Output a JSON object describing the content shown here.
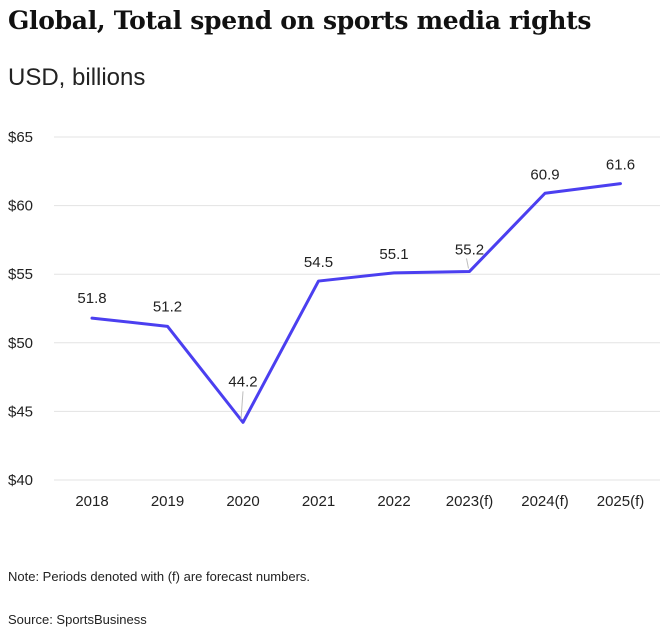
{
  "chart_data": {
    "type": "line",
    "title": "Global, Total spend on sports media rights",
    "subtitle": "USD, billions",
    "categories": [
      "2018",
      "2019",
      "2020",
      "2021",
      "2022",
      "2023(f)",
      "2024(f)",
      "2025(f)"
    ],
    "series": [
      {
        "values": [
          51.8,
          51.2,
          44.2,
          54.5,
          55.1,
          55.2,
          60.9,
          61.6
        ]
      }
    ],
    "data_labels": [
      "51.8",
      "51.2",
      "44.2",
      "54.5",
      "55.1",
      "55.2",
      "60.9",
      "61.6"
    ],
    "ylim": [
      40,
      65
    ],
    "yticks": [
      40,
      45,
      50,
      55,
      60,
      65
    ],
    "ytick_labels": [
      "$40",
      "$45",
      "$50",
      "$55",
      "$60",
      "$65"
    ],
    "grid": true,
    "legend": "none",
    "line_color": "#4b3ff0",
    "note": "Note: Periods denoted with (f) are forecast numbers.",
    "source": "Source: SportsBusiness"
  }
}
